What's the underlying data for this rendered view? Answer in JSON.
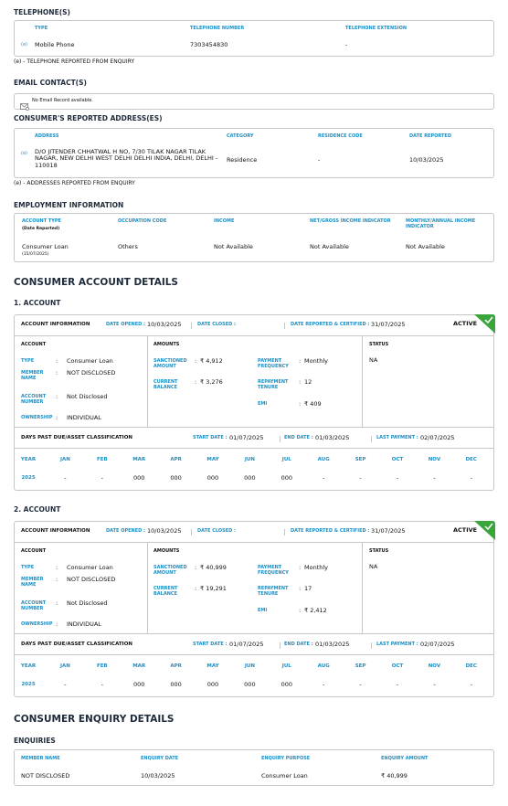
{
  "telephones": {
    "title": "TELEPHONE(S)",
    "headers": [
      "TYPE",
      "TELEPHONE NUMBER",
      "TELEPHONE EXTENSION"
    ],
    "rows": [
      [
        "(e)",
        "Mobile Phone",
        "7303454830",
        "-"
      ]
    ],
    "note": "(e) - TELEPHONE REPORTED FROM ENQUIRY"
  },
  "email": {
    "title": "EMAIL CONTACT(S)",
    "message": "No Email Record available."
  },
  "address": {
    "title": "CONSUMER'S REPORTED ADDRESS(ES)",
    "headers": [
      "ADDRESS",
      "CATEGORY",
      "RESIDENCE CODE",
      "DATE REPORTED"
    ],
    "rows": [
      [
        "(e)",
        "D/O JITENDER CHHATWAL H NO, 7/30 TILAK NAGAR TILAK NAGAR, NEW DELHI WEST DELHI DELHI INDIA, DELHI, DELHI - 110018",
        "Residence",
        "-",
        "10/03/2025"
      ]
    ],
    "note": "(e) - ADDRESSES REPORTED FROM ENQUIRY"
  },
  "employment": {
    "title": "EMPLOYMENT INFORMATION",
    "headers": [
      "ACCOUNT TYPE",
      "OCCUPATION CODE",
      "INCOME",
      "NET/GROSS INCOME INDICATOR",
      "MONTHLY/ANNUAL INCOME INDICATOR"
    ],
    "subheader": "(Date Reported)",
    "row": [
      "Consumer Loan",
      "Others",
      "Not Available",
      "Not Available",
      "Not Available"
    ],
    "row_date": "(15/07/2025)"
  },
  "account_details": {
    "title": "CONSUMER ACCOUNT DETAILS",
    "accounts": [
      {
        "heading": "1. ACCOUNT",
        "info_label": "ACCOUNT INFORMATION",
        "date_opened_label": "DATE OPENED :",
        "date_opened": "10/03/2025",
        "date_closed_label": "DATE CLOSED :",
        "date_reported_label": "DATE REPORTED & CERTIFIED :",
        "date_reported": "31/07/2025",
        "status_badge": "ACTIVE",
        "account_section": {
          "label": "ACCOUNT",
          "fields": [
            {
              "label": "TYPE",
              "value": "Consumer Loan"
            },
            {
              "label": "MEMBER NAME",
              "value": "NOT DISCLOSED"
            },
            {
              "label": "ACCOUNT NUMBER",
              "value": "Not Disclosed"
            },
            {
              "label": "OWNERSHIP",
              "value": "INDIVIDUAL"
            }
          ]
        },
        "amounts": {
          "label": "AMOUNTS",
          "fields": [
            {
              "label": "SANCTIONED AMOUNT",
              "value": "₹ 4,912"
            },
            {
              "label": "CURRENT BALANCE",
              "value": "₹ 3,276"
            },
            {
              "label": "PAYMENT FREQUENCY",
              "value": "Monthly"
            },
            {
              "label": "REPAYMENT TENURE",
              "value": "12"
            },
            {
              "label": "EMI",
              "value": "₹ 409"
            }
          ]
        },
        "status": {
          "label": "STATUS",
          "value": "NA"
        },
        "dpd": {
          "label": "DAYS PAST DUE/ASSET CLASSIFICATION",
          "start_date_label": "START DATE :",
          "start_date": "01/07/2025",
          "end_date_label": "END DATE :",
          "end_date": "01/03/2025",
          "last_payment_label": "LAST PAYMENT :",
          "last_payment": "02/07/2025",
          "headers": [
            "YEAR",
            "JAN",
            "FEB",
            "MAR",
            "APR",
            "MAY",
            "JUN",
            "JUL",
            "AUG",
            "SEP",
            "OCT",
            "NOV",
            "DEC"
          ],
          "row": [
            "2025",
            "-",
            "-",
            "000",
            "000",
            "000",
            "000",
            "000",
            "-",
            "-",
            "-",
            "-",
            "-"
          ]
        }
      },
      {
        "heading": "2. ACCOUNT",
        "info_label": "ACCOUNT INFORMATION",
        "date_opened_label": "DATE OPENED :",
        "date_opened": "10/03/2025",
        "date_closed_label": "DATE CLOSED :",
        "date_reported_label": "DATE REPORTED & CERTIFIED :",
        "date_reported": "31/07/2025",
        "status_badge": "ACTIVE",
        "account_section": {
          "label": "ACCOUNT",
          "fields": [
            {
              "label": "TYPE",
              "value": "Consumer Loan"
            },
            {
              "label": "MEMBER NAME",
              "value": "NOT DISCLOSED"
            },
            {
              "label": "ACCOUNT NUMBER",
              "value": "Not Disclosed"
            },
            {
              "label": "OWNERSHIP",
              "value": "INDIVIDUAL"
            }
          ]
        },
        "amounts": {
          "label": "AMOUNTS",
          "fields": [
            {
              "label": "SANCTIONED AMOUNT",
              "value": "₹ 40,999"
            },
            {
              "label": "CURRENT BALANCE",
              "value": "₹ 19,291"
            },
            {
              "label": "PAYMENT FREQUENCY",
              "value": "Monthly"
            },
            {
              "label": "REPAYMENT TENURE",
              "value": "17"
            },
            {
              "label": "EMI",
              "value": "₹ 2,412"
            }
          ]
        },
        "status": {
          "label": "STATUS",
          "value": "NA"
        },
        "dpd": {
          "label": "DAYS PAST DUE/ASSET CLASSIFICATION",
          "start_date_label": "START DATE :",
          "start_date": "01/07/2025",
          "end_date_label": "END DATE :",
          "end_date": "01/03/2025",
          "last_payment_label": "LAST PAYMENT :",
          "last_payment": "02/07/2025",
          "headers": [
            "YEAR",
            "JAN",
            "FEB",
            "MAR",
            "APR",
            "MAY",
            "JUN",
            "JUL",
            "AUG",
            "SEP",
            "OCT",
            "NOV",
            "DEC"
          ],
          "row": [
            "2025",
            "-",
            "-",
            "000",
            "000",
            "000",
            "000",
            "000",
            "-",
            "-",
            "-",
            "-",
            "-"
          ]
        }
      }
    ]
  },
  "enquiry": {
    "title": "CONSUMER ENQUIRY DETAILS",
    "subtitle": "ENQUIRIES",
    "headers": [
      "MEMBER NAME",
      "ENQUIRY DATE",
      "ENQUIRY PURPOSE",
      "ENQUIRY AMOUNT"
    ],
    "row": [
      "NOT DISCLOSED",
      "10/03/2025",
      "Consumer Loan",
      "₹ 40,999"
    ]
  }
}
